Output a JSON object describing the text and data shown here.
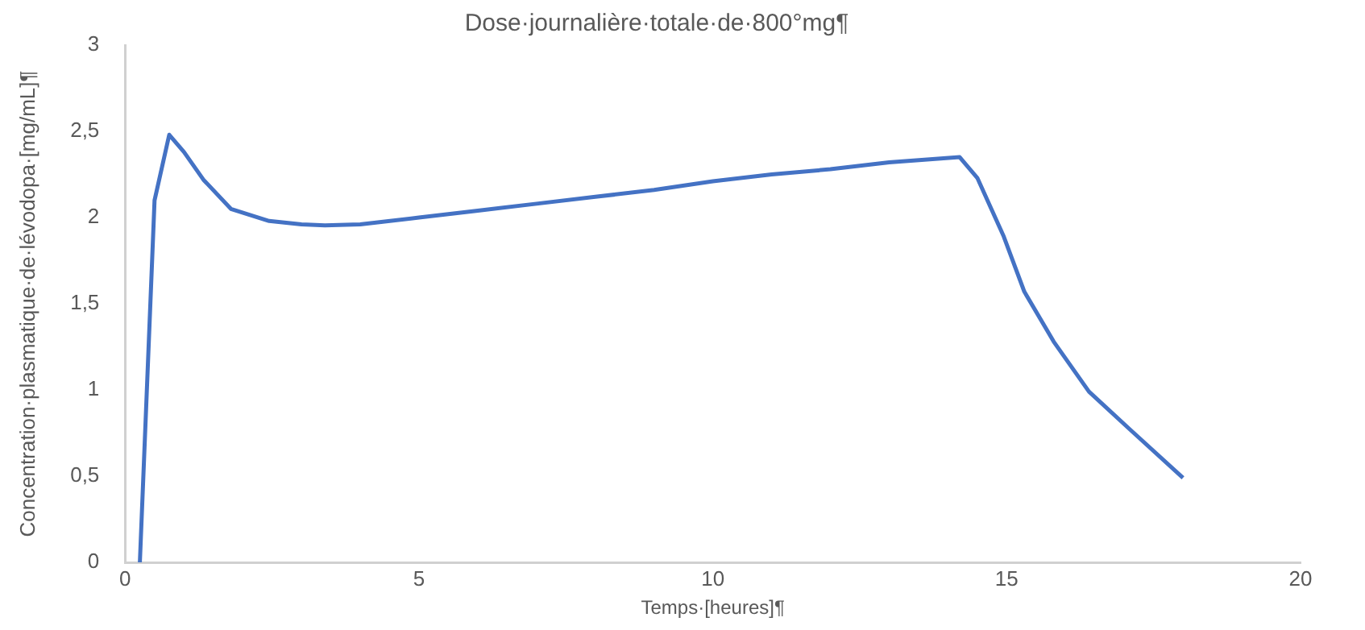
{
  "chart_data": {
    "type": "line",
    "title": "Dose·journalière·totale·de·800°mg¶",
    "xlabel": "Temps·[heures]¶",
    "ylabel": "Concentration·plasmatique·de·lévodopa·[mg/mL]¶",
    "x": [
      0.25,
      0.5,
      0.75,
      1.0,
      1.33,
      1.8,
      2.45,
      3.0,
      3.4,
      4.0,
      5.0,
      6.0,
      7.0,
      8.0,
      9.0,
      10.0,
      11.0,
      12.0,
      13.0,
      14.2,
      14.5,
      14.95,
      15.3,
      15.8,
      16.4,
      17.1,
      18.0
    ],
    "series": [
      {
        "color": "#4472c4",
        "values": [
          0,
          2.1,
          2.48,
          2.38,
          2.22,
          2.05,
          1.98,
          1.96,
          1.955,
          1.96,
          2.0,
          2.04,
          2.08,
          2.12,
          2.16,
          2.21,
          2.25,
          2.28,
          2.32,
          2.35,
          2.23,
          1.89,
          1.57,
          1.28,
          0.99,
          0.77,
          0.49
        ]
      }
    ],
    "xlim": [
      0,
      20
    ],
    "xticks": [
      0,
      5,
      10,
      15,
      20
    ],
    "ylim": [
      0,
      3
    ],
    "yticks": [
      0,
      {
        "value": 0.5,
        "label": "0,5"
      },
      1,
      {
        "value": 1.5,
        "label": "1,5"
      },
      2,
      {
        "value": 2.5,
        "label": "2,5"
      },
      3
    ],
    "grid": false,
    "legend": false,
    "marker": "none",
    "line_style": "solid"
  }
}
